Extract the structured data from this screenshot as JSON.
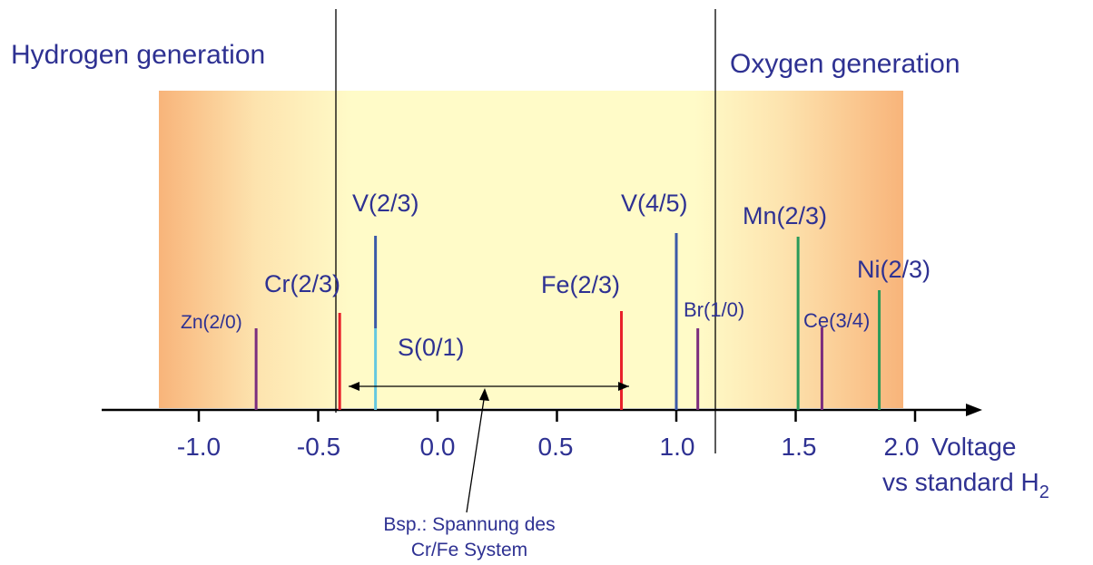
{
  "regions": {
    "left_label": "Hydrogen generation",
    "right_label": "Oxygen generation"
  },
  "axis": {
    "ticks": [
      "-1.0",
      "-0.5",
      "0.0",
      "0.5",
      "1.0",
      "1.5",
      "2.0"
    ],
    "label_line1": "Voltage",
    "label_line2": "vs standard H",
    "label_subscript": "2"
  },
  "couples": [
    {
      "label": "Zn(2/0)",
      "value": -0.76,
      "color": "#7b2d7e"
    },
    {
      "label": "Cr(2/3)",
      "value": -0.41,
      "color": "#e8202a"
    },
    {
      "label": "V(2/3)",
      "value": -0.26,
      "color": "#3b5aa8"
    },
    {
      "label": "S(0/1)",
      "value": -0.26,
      "color": "#64c8e0"
    },
    {
      "label": "Fe(2/3)",
      "value": 0.77,
      "color": "#e8202a"
    },
    {
      "label": "V(4/5)",
      "value": 1.0,
      "color": "#3b5aa8"
    },
    {
      "label": "Br(1/0)",
      "value": 1.09,
      "color": "#7b2d7e"
    },
    {
      "label": "Mn(2/3)",
      "value": 1.51,
      "color": "#2a9a5a"
    },
    {
      "label": "Ce(3/4)",
      "value": 1.61,
      "color": "#7b2d7e"
    },
    {
      "label": "Ni(2/3)",
      "value": 1.85,
      "color": "#2a9a5a"
    }
  ],
  "annotation": {
    "line1": "Bsp.: Spannung des",
    "line2": "Cr/Fe System"
  },
  "colors": {
    "text": "#2e3192",
    "band_outer": "#f8b878",
    "band_inner": "#fffac8"
  }
}
